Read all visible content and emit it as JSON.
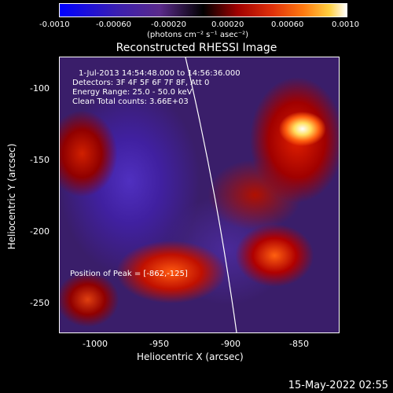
{
  "colorbar": {
    "ticks": [
      "-0.0010",
      "-0.00060",
      "-0.00020",
      "0.00020",
      "0.00060",
      "0.0010"
    ],
    "unit": "(photons cm⁻² s⁻¹ asec⁻²)"
  },
  "title": "Reconstructed RHESSI Image",
  "info": {
    "line1": "1-Jul-2013 14:54:48.000 to 14:56:36.000",
    "line2": "Detectors: 3F 4F 5F 6F 7F 8F, Att 0",
    "line3": "Energy Range: 25.0 - 50.0 keV",
    "line4": "Clean    Total counts: 3.66E+03"
  },
  "peak": "Position of Peak = [-862,-125]",
  "y_axis": {
    "title": "Heliocentric Y (arcsec)",
    "ticks": [
      "-100",
      "-150",
      "-200",
      "-250"
    ]
  },
  "x_axis": {
    "title": "Heliocentric X (arcsec)",
    "ticks": [
      "-1000",
      "-950",
      "-900",
      "-850"
    ]
  },
  "footer_date": "15-May-2022 02:55"
}
